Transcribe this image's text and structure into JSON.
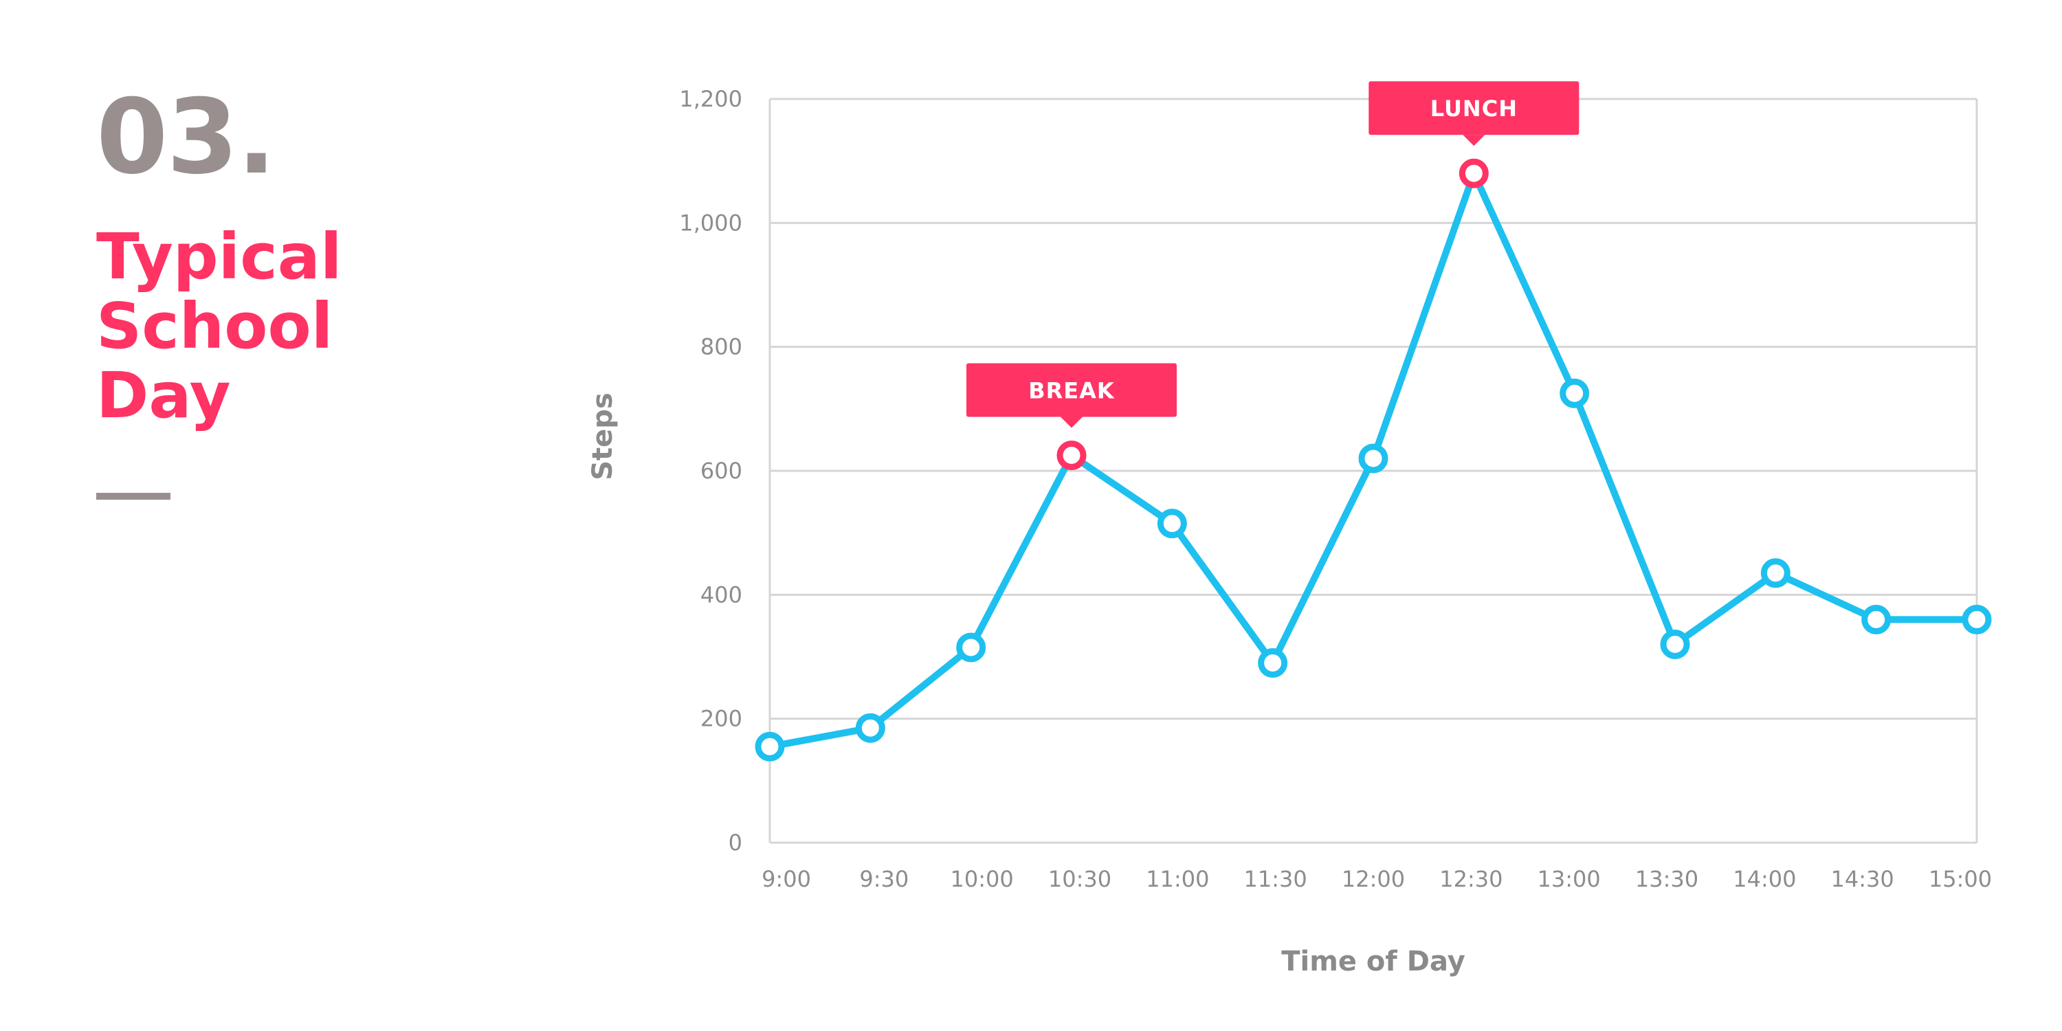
{
  "panel": {
    "number": "03.",
    "title_lines": [
      "Typical",
      "School",
      "Day"
    ]
  },
  "colors": {
    "line": "#1ec0ef",
    "highlight": "#ff3364",
    "grid": "#d6d6d6",
    "number": "#9a8f8f"
  },
  "chart_data": {
    "type": "line",
    "xlabel": "Time of Day",
    "ylabel": "Steps",
    "x_tick_labels": [
      "9:00",
      "9:30",
      "10:00",
      "10:30",
      "11:00",
      "11:30",
      "12:00",
      "12:30",
      "13:00",
      "13:30",
      "14:00",
      "14:30",
      "15:00"
    ],
    "y_tick_labels": [
      "0",
      "200",
      "400",
      "600",
      "800",
      "1,000",
      "1,200"
    ],
    "ylim": [
      0,
      1200
    ],
    "y_ticks": [
      0,
      200,
      400,
      600,
      800,
      1000,
      1200
    ],
    "grid": true,
    "series": [
      {
        "x": [
          "9:00",
          "9:30",
          "10:00",
          "10:30",
          "11:00",
          "11:30",
          "12:00",
          "12:30",
          "13:00",
          "13:30",
          "14:00",
          "14:30",
          "15:00"
        ],
        "values": [
          155,
          185,
          315,
          625,
          515,
          290,
          620,
          1080,
          725,
          320,
          435,
          360,
          360
        ]
      }
    ],
    "annotations": [
      {
        "label": "BREAK",
        "point_index": 3
      },
      {
        "label": "LUNCH",
        "point_index": 7
      }
    ]
  }
}
